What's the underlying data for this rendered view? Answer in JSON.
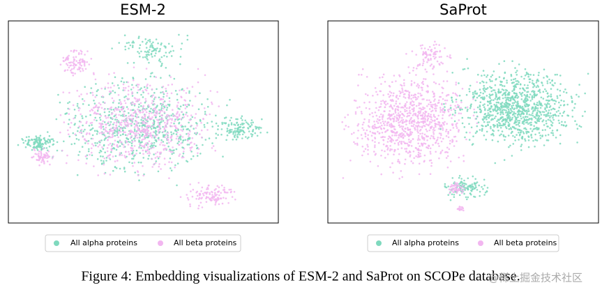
{
  "figure": {
    "panels": [
      {
        "title": "ESM-2",
        "legend": [
          {
            "name": "All alpha proteins",
            "color": "#7fd9be"
          },
          {
            "name": "All beta proteins",
            "color": "#f2b6f0"
          }
        ]
      },
      {
        "title": "SaProt",
        "legend": [
          {
            "name": "All alpha proteins",
            "color": "#7fd9be"
          },
          {
            "name": "All beta proteins",
            "color": "#f2b6f0"
          }
        ]
      }
    ],
    "caption": "Figure 4: Embedding visualizations of ESM-2 and SaProt on SCOPe database.",
    "watermark": "@稀土掘金技术社区"
  }
}
